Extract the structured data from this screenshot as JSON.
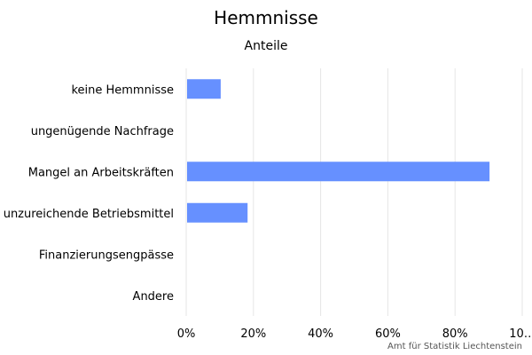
{
  "title": "Hemmnisse",
  "subtitle": "Anteile",
  "credit": "Amt für Statistik Liechtenstein",
  "chart_data": {
    "type": "bar",
    "orientation": "horizontal",
    "title": "Hemmnisse",
    "subtitle": "Anteile",
    "categories": [
      "keine Hemmnisse",
      "ungenügende Nachfrage",
      "Mangel an Arbeitskräften",
      "unzureichende Betriebsmittel",
      "Finanzierungsengpässe",
      "Andere"
    ],
    "values": [
      10,
      0,
      90,
      18,
      0,
      0
    ],
    "xlim": [
      0,
      100
    ],
    "x_ticks": [
      "0%",
      "20%",
      "40%",
      "60%",
      "80%",
      "10…"
    ],
    "x_tick_values": [
      0,
      20,
      40,
      60,
      80,
      100
    ],
    "grid": true,
    "legend": "none",
    "bar_color": "#6690ff",
    "grid_color": "#e6e6e6"
  }
}
